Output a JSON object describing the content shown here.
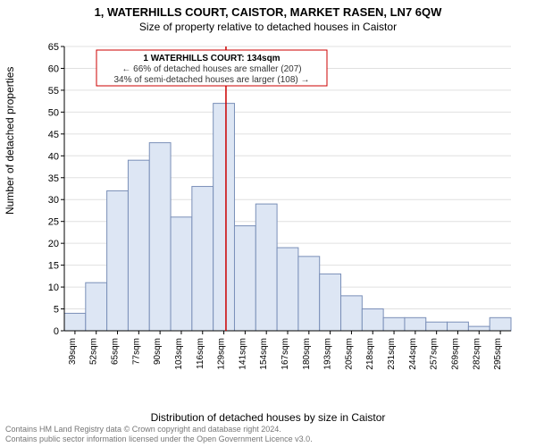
{
  "title": "1, WATERHILLS COURT, CAISTOR, MARKET RASEN, LN7 6QW",
  "subtitle": "Size of property relative to detached houses in Caistor",
  "ylabel": "Number of detached properties",
  "xlabel": "Distribution of detached houses by size in Caistor",
  "footer_line1": "Contains HM Land Registry data © Crown copyright and database right 2024.",
  "footer_line2": "Contains public sector information licensed under the Open Government Licence v3.0.",
  "chart": {
    "type": "histogram",
    "bar_fill": "#dde6f4",
    "bar_stroke": "#7a8fb8",
    "background_color": "#ffffff",
    "grid_color": "#e0e0e0",
    "axis_color": "#000000",
    "ylim": [
      0,
      65
    ],
    "ytick_step": 5,
    "yticks": [
      0,
      5,
      10,
      15,
      20,
      25,
      30,
      35,
      40,
      45,
      50,
      55,
      60,
      65
    ],
    "xticks": [
      "39sqm",
      "52sqm",
      "65sqm",
      "77sqm",
      "90sqm",
      "103sqm",
      "116sqm",
      "129sqm",
      "141sqm",
      "154sqm",
      "167sqm",
      "180sqm",
      "193sqm",
      "205sqm",
      "218sqm",
      "231sqm",
      "244sqm",
      "257sqm",
      "269sqm",
      "282sqm",
      "295sqm"
    ],
    "values": [
      4,
      11,
      32,
      39,
      43,
      26,
      33,
      52,
      24,
      29,
      19,
      17,
      13,
      8,
      5,
      3,
      3,
      2,
      2,
      1,
      3
    ],
    "vline_index": 7.6,
    "vline_color": "#cc0000",
    "annotation": {
      "title": "1 WATERHILLS COURT: 134sqm",
      "line1": "← 66% of detached houses are smaller (207)",
      "line2": "34% of semi-detached houses are larger (108) →",
      "border_color": "#cc0000",
      "text_color": "#333333"
    },
    "label_fontsize": 12,
    "tick_fontsize": 11,
    "xtick_fontsize": 10
  }
}
